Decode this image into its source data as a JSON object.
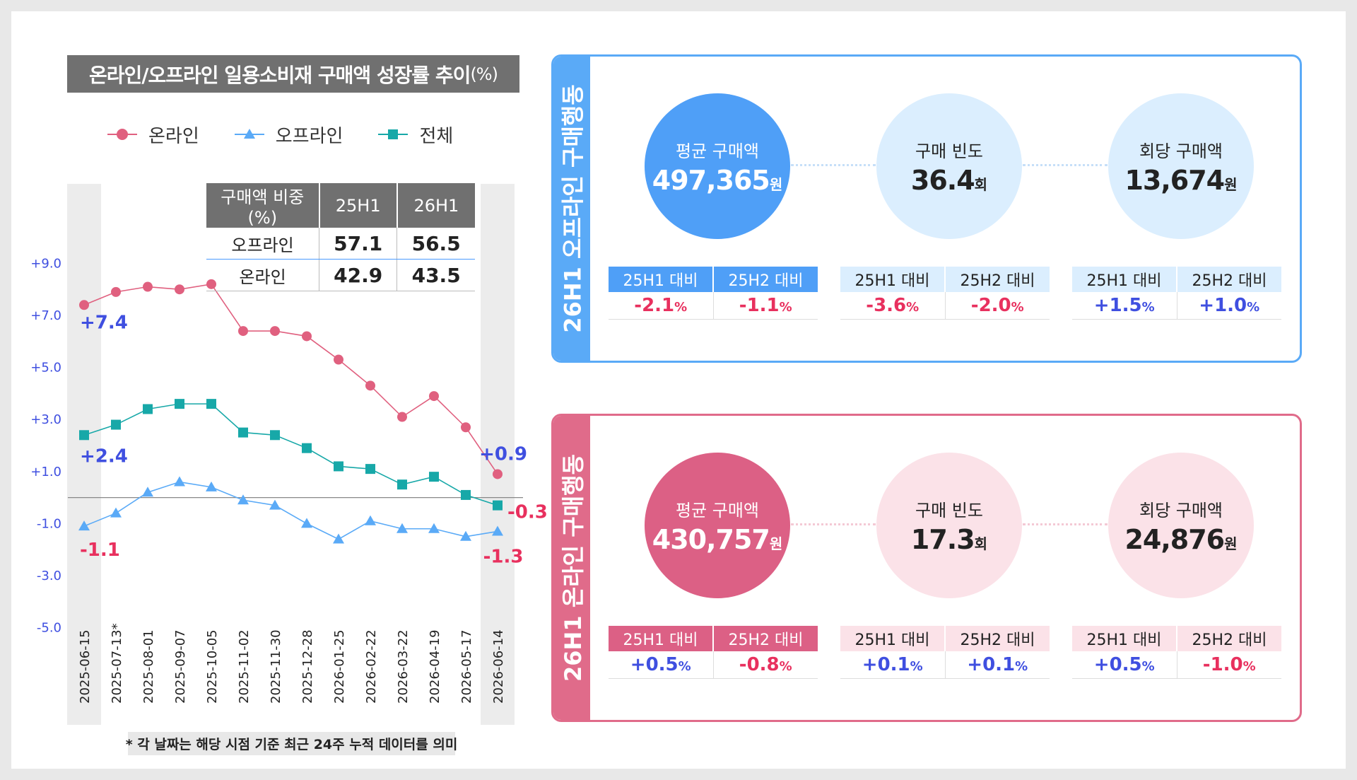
{
  "chart_title": "온라인/오프라인 일용소비재 구매액 성장률 추이",
  "chart_title_unit": "(%)",
  "legend": [
    {
      "name": "온라인",
      "color": "#e0607f",
      "marker": "circle"
    },
    {
      "name": "오프라인",
      "color": "#5aaaf7",
      "marker": "triangle"
    },
    {
      "name": "전체",
      "color": "#17a8a8",
      "marker": "square"
    }
  ],
  "share_table": {
    "headers": [
      "구매액 비중(%)",
      "25H1",
      "26H1"
    ],
    "rows": [
      {
        "label": "오프라인",
        "v1": "57.1",
        "v2": "56.5"
      },
      {
        "label": "온라인",
        "v1": "42.9",
        "v2": "43.5"
      }
    ]
  },
  "chart_data": {
    "type": "line",
    "x": [
      "2025-06-15",
      "2025-07-13*",
      "2025-08-01",
      "2025-09-07",
      "2025-10-05",
      "2025-11-02",
      "2025-11-30",
      "2025-12-28",
      "2026-01-25",
      "2026-02-22",
      "2026-03-22",
      "2026-04-19",
      "2026-05-17",
      "2026-06-14"
    ],
    "yticks": [
      "+9.0",
      "+7.0",
      "+5.0",
      "+3.0",
      "+1.0",
      "-1.0",
      "-3.0",
      "-5.0"
    ],
    "ytick_values": [
      9,
      7,
      5,
      3,
      1,
      -1,
      -3,
      -5
    ],
    "ylim": [
      -5.5,
      9.5
    ],
    "series": [
      {
        "name": "온라인",
        "color": "#e0607f",
        "values": [
          7.4,
          7.9,
          8.1,
          8.0,
          8.2,
          6.4,
          6.4,
          6.2,
          5.3,
          4.3,
          3.1,
          3.9,
          2.7,
          0.9
        ]
      },
      {
        "name": "전체",
        "color": "#17a8a8",
        "values": [
          2.4,
          2.8,
          3.4,
          3.6,
          3.6,
          2.5,
          2.4,
          1.9,
          1.2,
          1.1,
          0.5,
          0.8,
          0.1,
          -0.3
        ]
      },
      {
        "name": "오프라인",
        "color": "#5aaaf7",
        "values": [
          -1.1,
          -0.6,
          0.2,
          0.6,
          0.4,
          -0.1,
          -0.3,
          -1.0,
          -1.6,
          -0.9,
          -1.2,
          -1.2,
          -1.5,
          -1.3
        ]
      }
    ],
    "annotations": [
      {
        "text": "+7.4",
        "color": "#3f4fe0"
      },
      {
        "text": "+2.4",
        "color": "#3f4fe0"
      },
      {
        "text": "-1.1",
        "color": "#e8305e"
      },
      {
        "text": "+0.9",
        "color": "#3f4fe0"
      },
      {
        "text": "-0.3",
        "color": "#e8305e"
      },
      {
        "text": "-1.3",
        "color": "#e8305e"
      }
    ]
  },
  "footnote": "* 각 날짜는 해당 시점 기준 최근 24주 누적 데이터를 의미",
  "offline_panel": {
    "label": "26H1 오프라인 구매행동",
    "metrics": [
      {
        "label": "평균 구매액",
        "value": "497,365",
        "unit": "원",
        "cmp": [
          {
            "h": "25H1 대비",
            "v": "-2.1",
            "sign": "neg"
          },
          {
            "h": "25H2 대비",
            "v": "-1.1",
            "sign": "neg"
          }
        ]
      },
      {
        "label": "구매 빈도",
        "value": "36.4",
        "unit": "회",
        "cmp": [
          {
            "h": "25H1 대비",
            "v": "-3.6",
            "sign": "neg"
          },
          {
            "h": "25H2 대비",
            "v": "-2.0",
            "sign": "neg"
          }
        ]
      },
      {
        "label": "회당 구매액",
        "value": "13,674",
        "unit": "원",
        "cmp": [
          {
            "h": "25H1 대비",
            "v": "+1.5",
            "sign": "pos"
          },
          {
            "h": "25H2 대비",
            "v": "+1.0",
            "sign": "pos"
          }
        ]
      }
    ]
  },
  "online_panel": {
    "label": "26H1 온라인 구매행동",
    "metrics": [
      {
        "label": "평균 구매액",
        "value": "430,757",
        "unit": "원",
        "cmp": [
          {
            "h": "25H1 대비",
            "v": "+0.5",
            "sign": "pos"
          },
          {
            "h": "25H2 대비",
            "v": "-0.8",
            "sign": "neg"
          }
        ]
      },
      {
        "label": "구매 빈도",
        "value": "17.3",
        "unit": "회",
        "cmp": [
          {
            "h": "25H1 대비",
            "v": "+0.1",
            "sign": "pos"
          },
          {
            "h": "25H2 대비",
            "v": "+0.1",
            "sign": "pos"
          }
        ]
      },
      {
        "label": "회당 구매액",
        "value": "24,876",
        "unit": "원",
        "cmp": [
          {
            "h": "25H1 대비",
            "v": "+0.5",
            "sign": "pos"
          },
          {
            "h": "25H2 대비",
            "v": "-1.0",
            "sign": "neg"
          }
        ]
      }
    ]
  },
  "pct_unit": "%"
}
